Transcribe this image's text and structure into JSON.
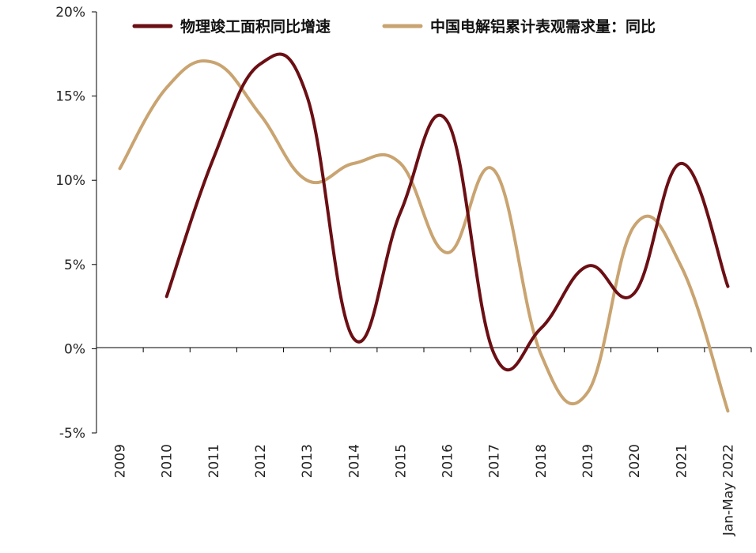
{
  "chart_data": {
    "type": "line",
    "categories": [
      "2009",
      "2010",
      "2011",
      "2012",
      "2013",
      "2014",
      "2015",
      "2016",
      "2017",
      "2018",
      "2019",
      "2020",
      "2021",
      "Jan-May 2022"
    ],
    "series": [
      {
        "name": "物理竣工面积同比增速",
        "color": "#6b0f14",
        "values": [
          null,
          3.1,
          11.3,
          16.9,
          15.0,
          0.6,
          8.1,
          13.5,
          -0.3,
          1.2,
          4.9,
          3.3,
          11.0,
          3.7
        ]
      },
      {
        "name": "中国电解铝累计表观需求量：同比",
        "color": "#c9a471",
        "values": [
          10.7,
          15.5,
          17.0,
          13.9,
          10.0,
          11.0,
          11.0,
          5.7,
          10.6,
          -0.3,
          -2.6,
          7.3,
          4.9,
          -3.7
        ]
      }
    ],
    "yticks": [
      "-5%",
      "0%",
      "5%",
      "10%",
      "15%",
      "20%"
    ],
    "ylim": [
      -5,
      20
    ],
    "legend_position": "top",
    "grid": false
  }
}
